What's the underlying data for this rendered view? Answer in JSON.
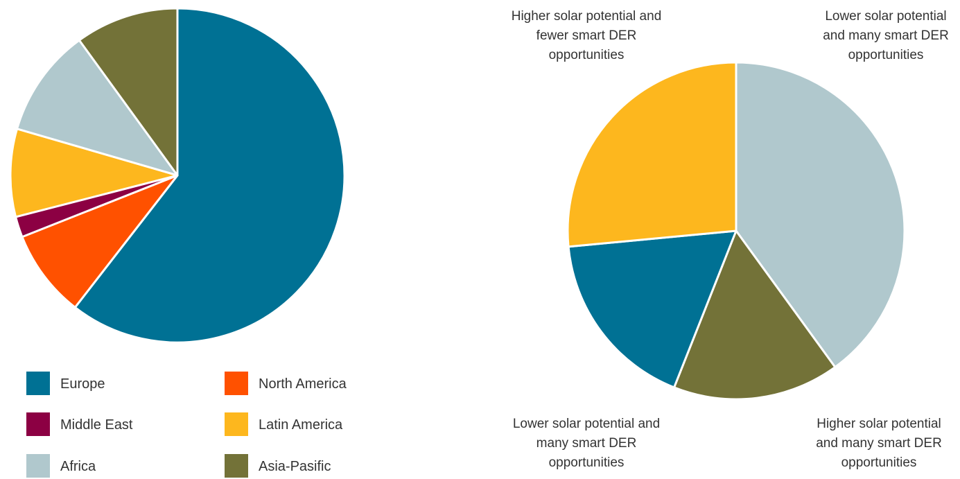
{
  "chart_data": [
    {
      "type": "pie",
      "title": "",
      "slices": [
        {
          "label": "Europe",
          "value": 60.5,
          "color": "#007194"
        },
        {
          "label": "North America",
          "value": 8.5,
          "color": "#FF5100"
        },
        {
          "label": "Middle East",
          "value": 2.0,
          "color": "#8C0043"
        },
        {
          "label": "Latin America",
          "value": 8.5,
          "color": "#FDB71E"
        },
        {
          "label": "Africa",
          "value": 10.5,
          "color": "#B0C8CD"
        },
        {
          "label": "Asia-Pasific",
          "value": 10.0,
          "color": "#737238"
        }
      ],
      "start_angle_deg": 0,
      "direction": "clockwise",
      "legend": {
        "placement": "bottom",
        "columns": 2,
        "order": [
          "Europe",
          "North America",
          "Middle East",
          "Latin America",
          "Africa",
          "Asia-Pasific"
        ]
      }
    },
    {
      "type": "pie",
      "title": "",
      "slices": [
        {
          "label": "Lower solar potential and many smart DER opportunities",
          "value": 40.0,
          "color": "#B0C8CD"
        },
        {
          "label": "Higher solar potential and many smart DER opportunities",
          "value": 16.0,
          "color": "#737238"
        },
        {
          "label": "Lower solar potential and many smart DER opportunities",
          "value": 17.5,
          "color": "#007194"
        },
        {
          "label": "Higher solar potential and fewer smart DER opportunities",
          "value": 26.5,
          "color": "#FDB71E"
        }
      ],
      "start_angle_deg": 0,
      "direction": "clockwise",
      "annotations": [
        {
          "lines": [
            "Higher solar potential and",
            "fewer smart DER",
            "opportunities"
          ],
          "position": "top-left"
        },
        {
          "lines": [
            "Lower solar potential",
            "and many smart DER",
            "opportunities"
          ],
          "position": "top-right"
        },
        {
          "lines": [
            "Lower solar potential and",
            "many smart DER",
            "opportunities"
          ],
          "position": "bottom-left"
        },
        {
          "lines": [
            "Higher solar potential",
            "and many smart DER",
            "opportunities"
          ],
          "position": "bottom-right"
        }
      ]
    }
  ]
}
